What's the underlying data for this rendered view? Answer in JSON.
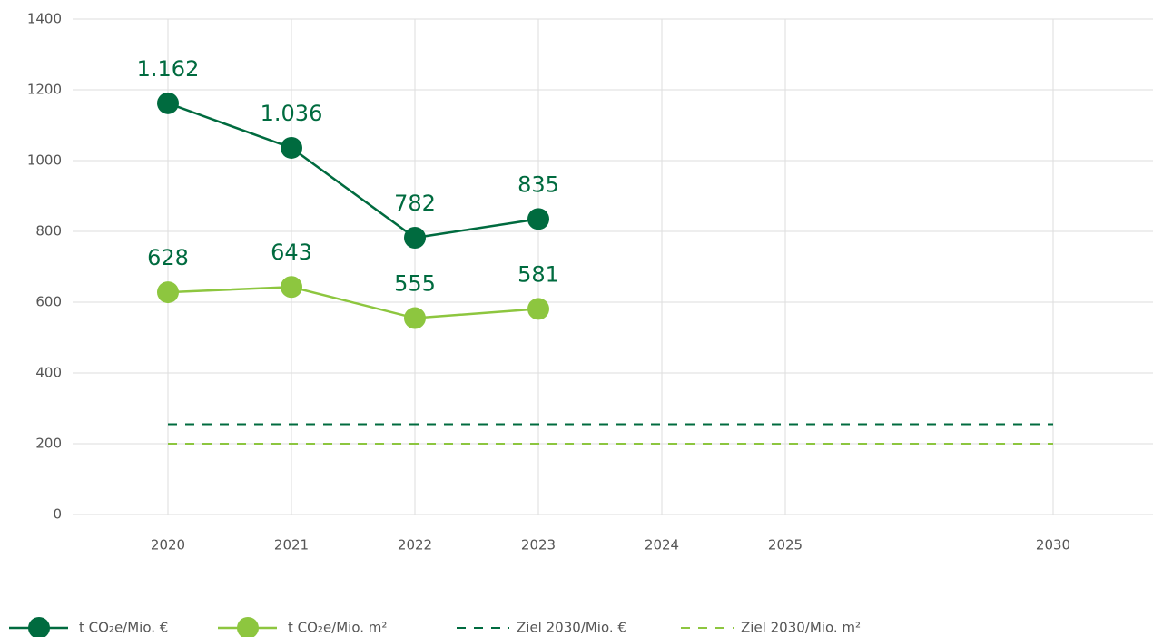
{
  "chart_data": {
    "type": "line",
    "categories": [
      "2020",
      "2021",
      "2022",
      "2023",
      "2024",
      "2025",
      "2030"
    ],
    "series": [
      {
        "name": "t CO₂e/Mio. €",
        "color": "#006b3f",
        "dash": false,
        "markers": true,
        "values": [
          1162,
          1036,
          782,
          835,
          null,
          null,
          null
        ],
        "value_labels": [
          "1.162",
          "1.036",
          "782",
          "835",
          null,
          null,
          null
        ]
      },
      {
        "name": "t CO₂e/Mio. m²",
        "color": "#8dc63f",
        "dash": false,
        "markers": true,
        "values": [
          628,
          643,
          555,
          581,
          null,
          null,
          null
        ],
        "value_labels": [
          "628",
          "643",
          "555",
          "581",
          null,
          null,
          null
        ]
      },
      {
        "name": "Ziel 2030/Mio. €",
        "color": "#006b3f",
        "dash": true,
        "markers": false,
        "values": [
          255,
          255,
          255,
          255,
          255,
          255,
          255
        ]
      },
      {
        "name": "Ziel 2030/Mio. m²",
        "color": "#8dc63f",
        "dash": true,
        "markers": false,
        "values": [
          200,
          200,
          200,
          200,
          200,
          200,
          200
        ]
      }
    ],
    "ylim": [
      0,
      1400
    ],
    "yticks": [
      0,
      200,
      400,
      600,
      800,
      1000,
      1200,
      1400
    ],
    "grid": true,
    "legend": "bottom"
  }
}
